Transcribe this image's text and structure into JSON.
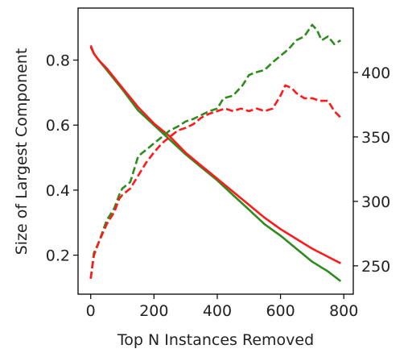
{
  "chart_data": {
    "type": "line",
    "title": "",
    "xlabel": "Top N Instances Removed",
    "ylabel": "Size of Largest Component",
    "ylabel_right": "",
    "xlim": [
      -40,
      830
    ],
    "ylim": [
      0.08,
      0.96
    ],
    "ylim_right": [
      228,
      450
    ],
    "x_ticks": [
      0,
      200,
      400,
      600,
      800
    ],
    "y_ticks": [
      0.2,
      0.4,
      0.6,
      0.8
    ],
    "y_ticks_right": [
      250,
      300,
      350,
      400
    ],
    "grid": false,
    "legend": "none",
    "series": [
      {
        "axis": "left",
        "style": "solid",
        "color": "#2e8b1e",
        "x": [
          0,
          10,
          25,
          50,
          100,
          150,
          200,
          250,
          300,
          350,
          400,
          450,
          500,
          550,
          600,
          650,
          700,
          750,
          790
        ],
        "y": [
          0.84,
          0.82,
          0.8,
          0.77,
          0.71,
          0.645,
          0.6,
          0.555,
          0.51,
          0.47,
          0.43,
          0.385,
          0.34,
          0.295,
          0.26,
          0.22,
          0.18,
          0.15,
          0.12
        ]
      },
      {
        "axis": "left",
        "style": "solid",
        "color": "#ff1a1a",
        "x": [
          0,
          10,
          25,
          50,
          100,
          150,
          200,
          250,
          300,
          350,
          400,
          450,
          500,
          550,
          600,
          650,
          700,
          750,
          790
        ],
        "y": [
          0.845,
          0.82,
          0.8,
          0.775,
          0.715,
          0.655,
          0.605,
          0.565,
          0.515,
          0.475,
          0.435,
          0.395,
          0.355,
          0.315,
          0.28,
          0.25,
          0.22,
          0.195,
          0.175
        ]
      },
      {
        "axis": "right",
        "style": "dashed",
        "color": "#2e8b1e",
        "x": [
          0,
          10,
          25,
          50,
          75,
          90,
          100,
          125,
          150,
          175,
          200,
          225,
          250,
          275,
          300,
          325,
          350,
          375,
          400,
          420,
          450,
          480,
          500,
          520,
          550,
          575,
          600,
          625,
          650,
          675,
          700,
          715,
          730,
          750,
          770,
          790
        ],
        "y": [
          240,
          260,
          268,
          285,
          295,
          305,
          310,
          315,
          335,
          340,
          345,
          350,
          355,
          358,
          362,
          364,
          367,
          370,
          372,
          380,
          382,
          390,
          398,
          400,
          402,
          408,
          413,
          418,
          425,
          428,
          437,
          433,
          425,
          428,
          422,
          425
        ]
      },
      {
        "axis": "right",
        "style": "dashed",
        "color": "#ff1a1a",
        "x": [
          0,
          10,
          25,
          50,
          75,
          90,
          100,
          125,
          150,
          175,
          200,
          225,
          250,
          275,
          300,
          325,
          350,
          375,
          400,
          425,
          450,
          475,
          500,
          525,
          550,
          575,
          600,
          615,
          635,
          650,
          675,
          700,
          725,
          750,
          770,
          790
        ],
        "y": [
          240,
          258,
          268,
          282,
          292,
          302,
          305,
          310,
          320,
          330,
          338,
          345,
          350,
          355,
          357,
          360,
          365,
          368,
          370,
          372,
          370,
          372,
          370,
          372,
          370,
          372,
          382,
          390,
          388,
          384,
          380,
          380,
          378,
          378,
          370,
          365
        ]
      }
    ]
  }
}
